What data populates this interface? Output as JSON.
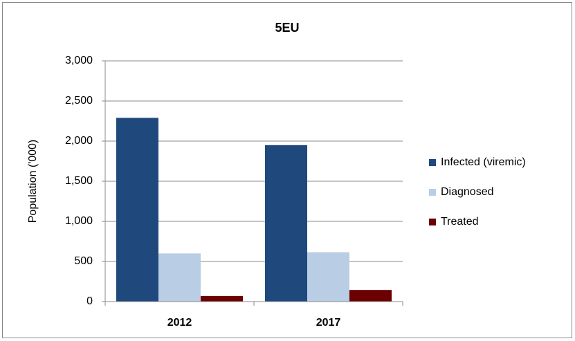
{
  "chart_data": {
    "type": "bar",
    "title": "5EU",
    "y_label": "Population ('000)",
    "categories": [
      "2012",
      "2017"
    ],
    "series": [
      {
        "name": "Infected (viremic)",
        "color": "#1f497d",
        "values": [
          2290,
          1950
        ]
      },
      {
        "name": "Diagnosed",
        "color": "#b9cde5",
        "values": [
          600,
          615
        ]
      },
      {
        "name": "Treated",
        "color": "#6b0000",
        "values": [
          70,
          145
        ]
      }
    ],
    "ylim": [
      0,
      3000
    ],
    "yticks": [
      0,
      500,
      {
        "value": 1000,
        "label": "1,000"
      },
      {
        "value": 1500,
        "label": "1,500"
      },
      {
        "value": 2000,
        "label": "2,000"
      },
      {
        "value": 2500,
        "label": "2,500"
      },
      {
        "value": 3000,
        "label": "3,000"
      }
    ],
    "grid": true,
    "legend": "right"
  }
}
